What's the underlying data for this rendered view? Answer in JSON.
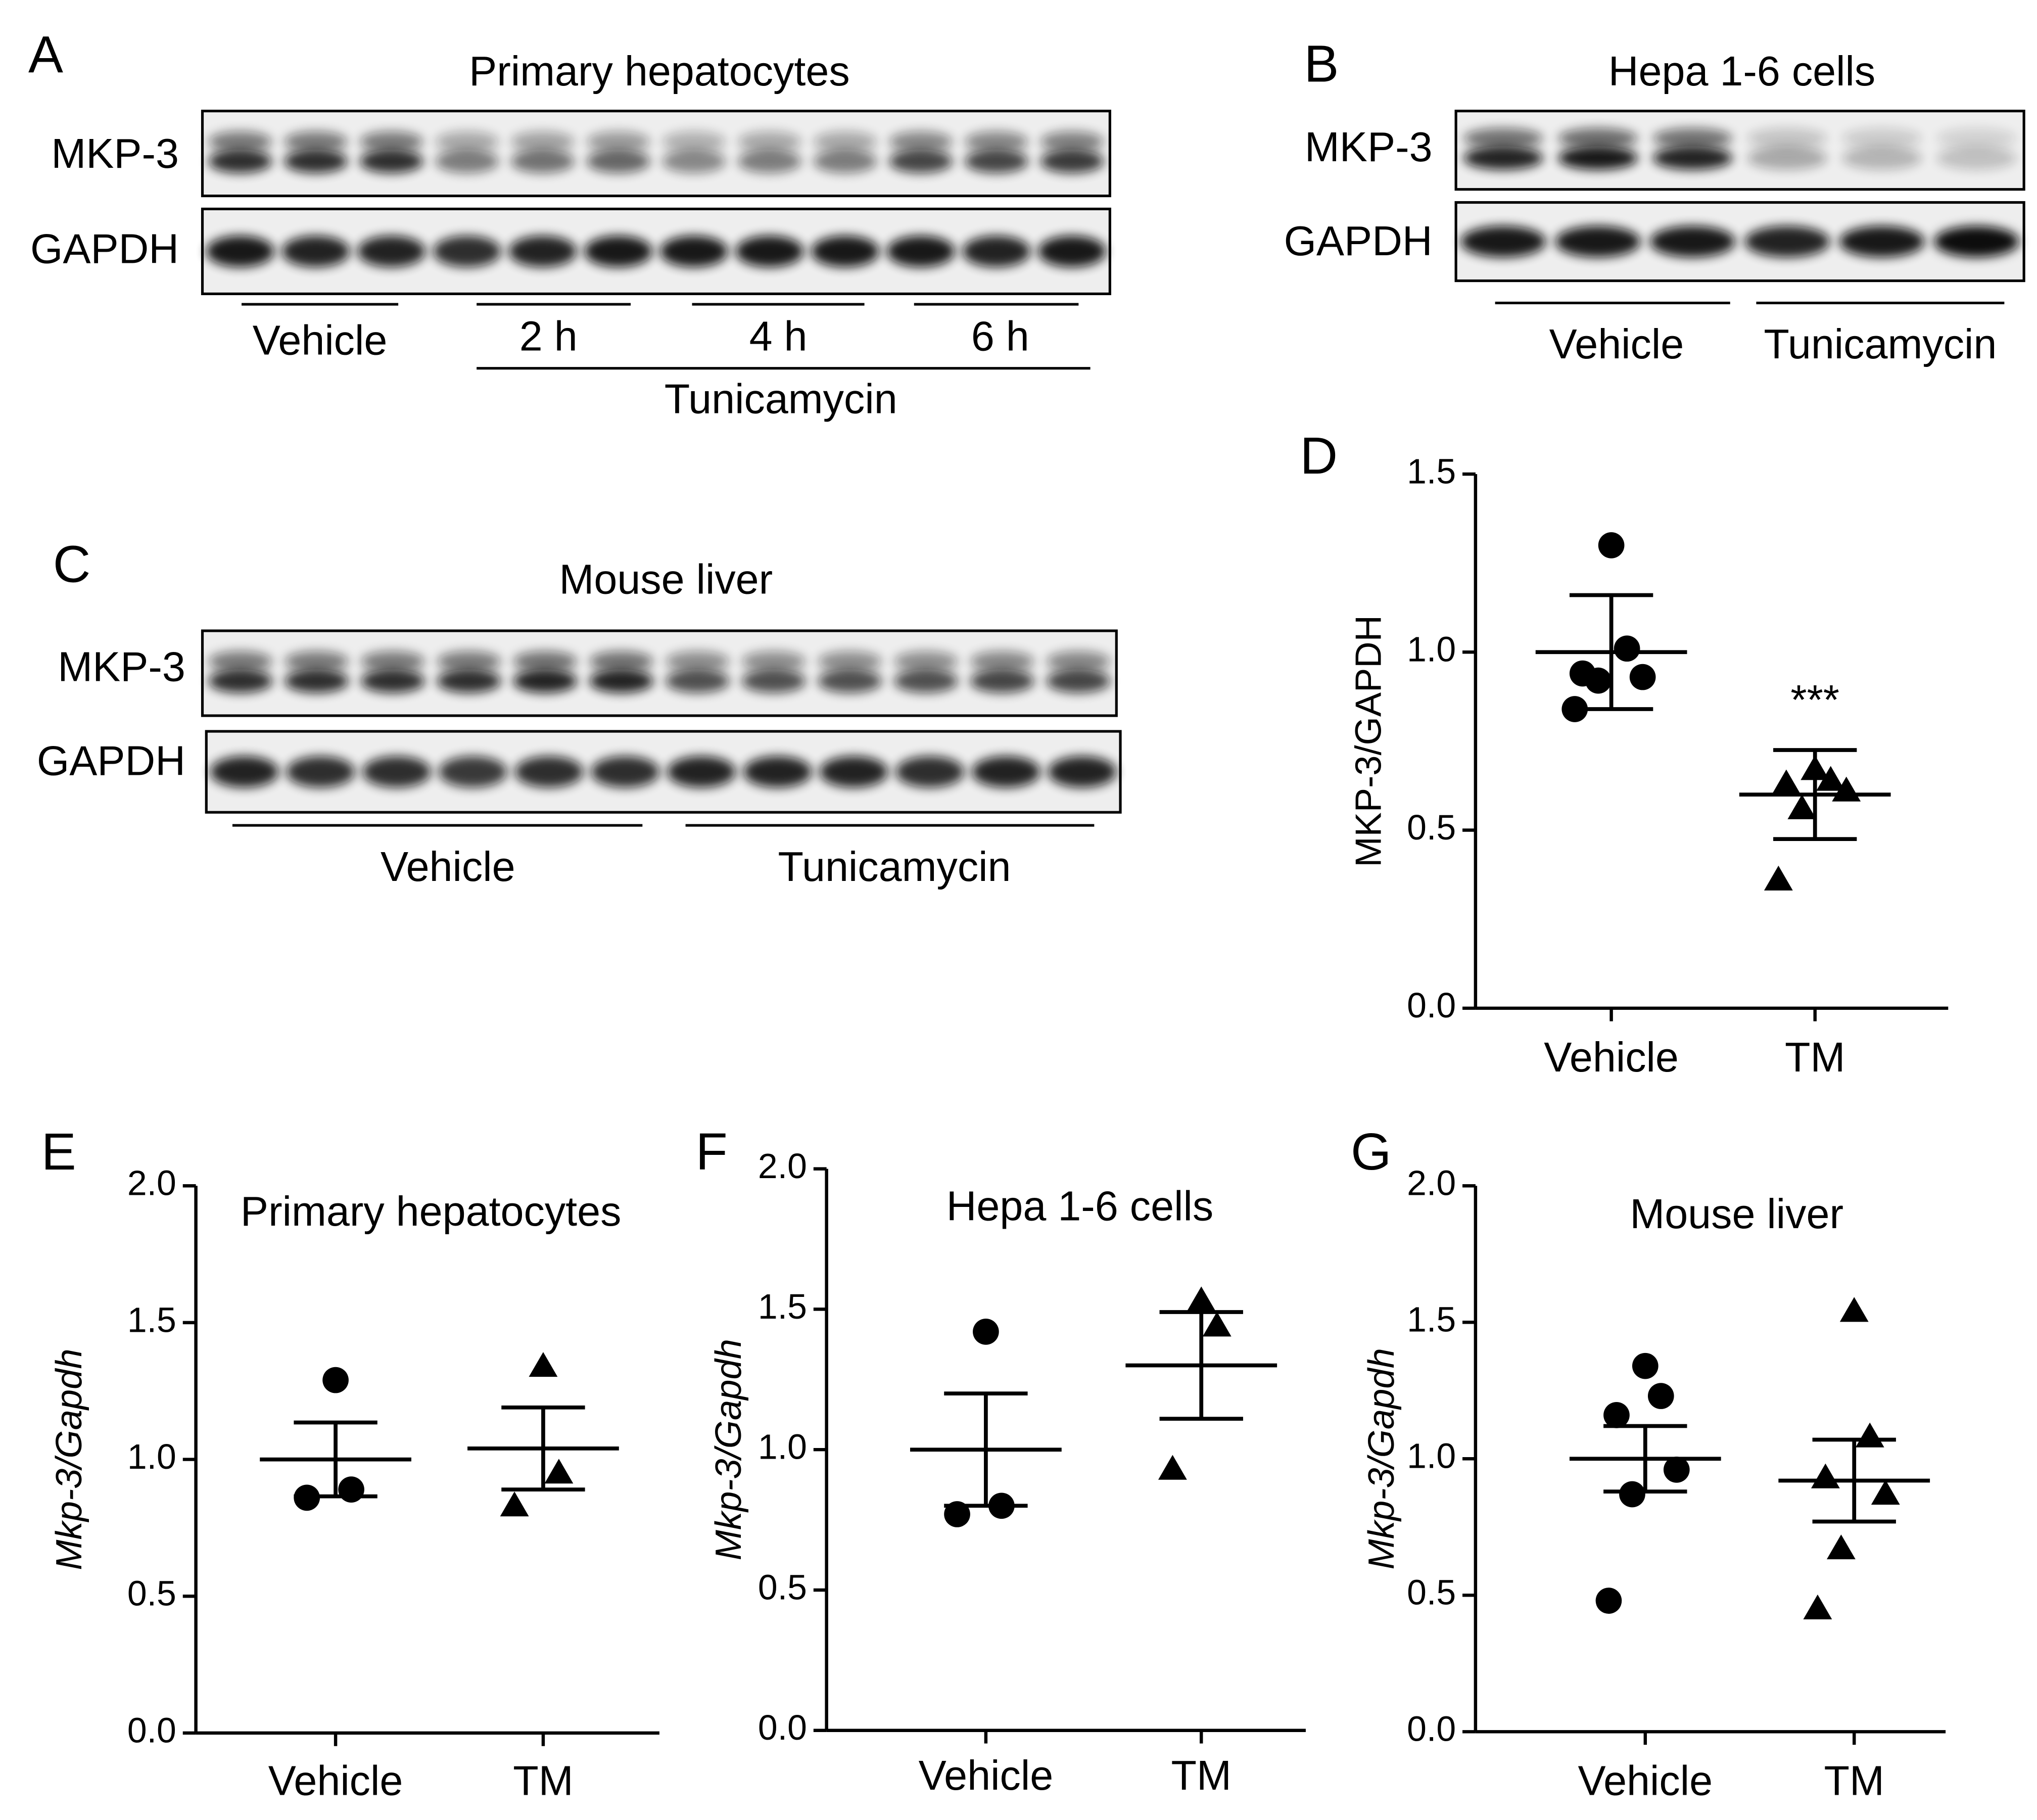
{
  "blots": [
    {
      "letter": "A",
      "title": "Primary hepatocytes",
      "rows": [
        "MKP-3",
        "GAPDH"
      ],
      "groups": [
        "Vehicle",
        "2 h",
        "4 h",
        "6 h"
      ],
      "supergroup": "Tunicamycin"
    },
    {
      "letter": "B",
      "title": "Hepa 1-6 cells",
      "rows": [
        "MKP-3",
        "GAPDH"
      ],
      "groups": [
        "Vehicle",
        "Tunicamycin"
      ]
    },
    {
      "letter": "C",
      "title": "Mouse liver",
      "rows": [
        "MKP-3",
        "GAPDH"
      ],
      "groups": [
        "Vehicle",
        "Tunicamycin"
      ]
    }
  ],
  "chart_data": [
    {
      "type": "dot",
      "letter": "D",
      "ylabel": "MKP-3/GAPDH",
      "categories": [
        "Vehicle",
        "TM"
      ],
      "markers": [
        "circle",
        "triangle"
      ],
      "color": "#000000",
      "values": [
        [
          1.3,
          1.01,
          0.94,
          0.93,
          0.92,
          0.84
        ],
        [
          0.67,
          0.64,
          0.63,
          0.61,
          0.56,
          0.36
        ]
      ],
      "mean": [
        1.0,
        0.6
      ],
      "error": [
        0.16,
        0.125
      ],
      "annotations": [
        {
          "text": "***",
          "category": 1
        }
      ],
      "ylim": [
        0,
        1.5
      ],
      "yticks": [
        {
          "value": 0,
          "label": "0.0"
        },
        {
          "value": 0.5,
          "label": "0.5"
        },
        {
          "value": 1,
          "label": "1.0"
        },
        {
          "value": 1.5,
          "label": "1.5"
        }
      ]
    },
    {
      "type": "dot",
      "letter": "E",
      "title": "Primary hepatocytes",
      "ylabel": "Mkp-3/Gapdh",
      "categories": [
        "Vehicle",
        "TM"
      ],
      "markers": [
        "circle",
        "triangle"
      ],
      "color": "#000000",
      "values": [
        [
          1.29,
          0.89,
          0.86
        ],
        [
          1.34,
          0.95,
          0.83
        ]
      ],
      "mean": [
        1.0,
        1.04
      ],
      "error": [
        0.135,
        0.15
      ],
      "ylim": [
        0,
        2
      ],
      "yticks": [
        {
          "value": 0,
          "label": "0.0"
        },
        {
          "value": 0.5,
          "label": "0.5"
        },
        {
          "value": 1,
          "label": "1.0"
        },
        {
          "value": 1.5,
          "label": "1.5"
        },
        {
          "value": 2,
          "label": "2.0"
        }
      ]
    },
    {
      "type": "dot",
      "letter": "F",
      "title": "Hepa 1-6 cells",
      "ylabel": "Mkp-3/Gapdh",
      "categories": [
        "Vehicle",
        "TM"
      ],
      "markers": [
        "circle",
        "triangle"
      ],
      "color": "#000000",
      "values": [
        [
          1.42,
          0.8,
          0.77
        ],
        [
          1.53,
          1.44,
          0.93
        ]
      ],
      "mean": [
        1.0,
        1.3
      ],
      "error": [
        0.2,
        0.19
      ],
      "ylim": [
        0,
        2
      ],
      "yticks": [
        {
          "value": 0,
          "label": "0.0"
        },
        {
          "value": 0.5,
          "label": "0.5"
        },
        {
          "value": 1,
          "label": "1.0"
        },
        {
          "value": 1.5,
          "label": "1.5"
        },
        {
          "value": 2,
          "label": "2.0"
        }
      ]
    },
    {
      "type": "dot",
      "letter": "G",
      "title": "Mouse liver",
      "ylabel": "Mkp-3/Gapdh",
      "categories": [
        "Vehicle",
        "TM"
      ],
      "markers": [
        "circle",
        "triangle"
      ],
      "color": "#000000",
      "values": [
        [
          1.34,
          1.23,
          1.16,
          0.96,
          0.87,
          0.48
        ],
        [
          1.54,
          1.08,
          0.93,
          0.87,
          0.67,
          0.45
        ]
      ],
      "mean": [
        1.0,
        0.92
      ],
      "error": [
        0.12,
        0.15
      ],
      "ylim": [
        0,
        2
      ],
      "yticks": [
        {
          "value": 0,
          "label": "0.0"
        },
        {
          "value": 0.5,
          "label": "0.5"
        },
        {
          "value": 1,
          "label": "1.0"
        },
        {
          "value": 1.5,
          "label": "1.5"
        },
        {
          "value": 2,
          "label": "2.0"
        }
      ]
    }
  ]
}
